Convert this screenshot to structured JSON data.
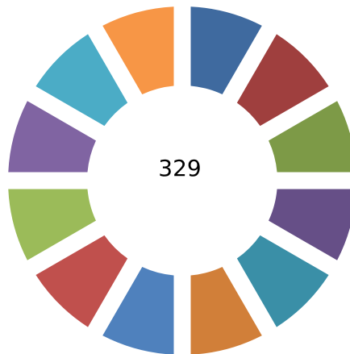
{
  "chart_data": {
    "type": "donut",
    "center_text": "329",
    "series": [
      {
        "color": "#3f6a9f",
        "values": [
          1,
          1,
          1,
          1,
          1,
          1,
          1,
          1,
          1,
          1,
          1,
          1
        ],
        "colors": [
          "#3f6a9f",
          "#9f3f3e",
          "#7d9a47",
          "#664f87",
          "#3a8fa7",
          "#d17f39",
          "#4f81bd",
          "#c0504d",
          "#9bbb59",
          "#8064a2",
          "#4bacc6",
          "#f79646"
        ]
      }
    ]
  }
}
